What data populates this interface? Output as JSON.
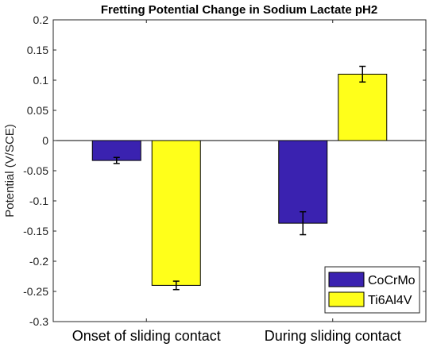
{
  "chart_data": {
    "type": "bar",
    "title": "Fretting Potential Change in Sodium Lactate pH2",
    "xlabel": "",
    "ylabel": "Potential (V/SCE)",
    "categories": [
      "Onset of sliding contact",
      "During sliding contact"
    ],
    "series": [
      {
        "name": "CoCrMo",
        "color": "#3a22b0",
        "values": [
          -0.033,
          -0.137
        ],
        "errors": [
          0.005,
          0.019
        ]
      },
      {
        "name": "Ti6Al4V",
        "color": "#ffff1a",
        "values": [
          -0.24,
          0.11
        ],
        "errors": [
          0.007,
          0.013
        ]
      }
    ],
    "ylim": [
      -0.3,
      0.2
    ],
    "yticks": [
      "-0.3",
      "-0.25",
      "-0.2",
      "-0.15",
      "-0.1",
      "-0.05",
      "0",
      "0.05",
      "0.1",
      "0.15",
      "0.2"
    ],
    "grid": false,
    "legend_position": "bottom-right"
  }
}
